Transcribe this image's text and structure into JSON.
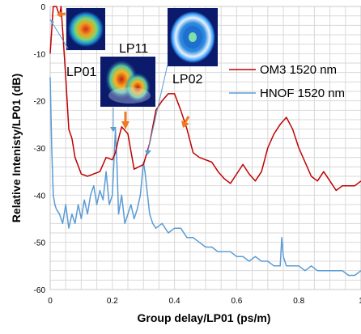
{
  "chart_data": {
    "type": "line",
    "xlabel": "Group delay/LP01 (ps/m)",
    "ylabel": "Relative Intenisty/LP01 (dB)",
    "xlim": [
      0,
      1
    ],
    "ylim": [
      -60,
      0
    ],
    "x_ticks": [
      0,
      0.2,
      0.4,
      0.6,
      0.8,
      1
    ],
    "y_ticks": [
      0,
      -10,
      -20,
      -30,
      -40,
      -50,
      -60
    ],
    "x_tick_labels": [
      "0",
      "0.2",
      "0.4",
      "0.6",
      "0.8",
      "1"
    ],
    "y_tick_labels": [
      "0",
      "-10",
      "-20",
      "-30",
      "-40",
      "-50",
      "-60"
    ],
    "grid": true,
    "legend_position": "right",
    "series": [
      {
        "name": "OM3 1520 nm",
        "color": "#c00000",
        "x": [
          0.0,
          0.01,
          0.02,
          0.03,
          0.035,
          0.04,
          0.05,
          0.06,
          0.07,
          0.08,
          0.1,
          0.12,
          0.14,
          0.16,
          0.18,
          0.2,
          0.21,
          0.22,
          0.23,
          0.25,
          0.27,
          0.3,
          0.32,
          0.34,
          0.36,
          0.38,
          0.4,
          0.42,
          0.44,
          0.46,
          0.48,
          0.5,
          0.52,
          0.54,
          0.56,
          0.58,
          0.6,
          0.62,
          0.64,
          0.66,
          0.68,
          0.7,
          0.72,
          0.74,
          0.76,
          0.78,
          0.8,
          0.82,
          0.84,
          0.86,
          0.88,
          0.9,
          0.92,
          0.94,
          0.96,
          0.98,
          1.0
        ],
        "y": [
          -10,
          0,
          0,
          -2,
          0,
          -5,
          -15,
          -26,
          -28,
          -32,
          -35.5,
          -36,
          -35.5,
          -35,
          -32,
          -32.5,
          -31,
          -28,
          -25.5,
          -27,
          -34.5,
          -33.5,
          -29,
          -22,
          -20,
          -18.5,
          -18.5,
          -22,
          -26,
          -31,
          -32,
          -32.5,
          -33,
          -35,
          -36.5,
          -37.5,
          -35.5,
          -33.5,
          -35.5,
          -37,
          -35,
          -30,
          -27,
          -25,
          -23.5,
          -26,
          -30,
          -33,
          -36,
          -37,
          -35,
          -37,
          -39,
          -38,
          -38,
          -38,
          -37
        ]
      },
      {
        "name": "HNOF 1520 nm",
        "color": "#5b9bd5",
        "x": [
          0.0,
          0.005,
          0.01,
          0.015,
          0.02,
          0.03,
          0.04,
          0.05,
          0.06,
          0.07,
          0.08,
          0.09,
          0.1,
          0.11,
          0.12,
          0.13,
          0.14,
          0.15,
          0.16,
          0.17,
          0.18,
          0.19,
          0.2,
          0.205,
          0.21,
          0.215,
          0.22,
          0.23,
          0.24,
          0.25,
          0.26,
          0.27,
          0.28,
          0.29,
          0.3,
          0.305,
          0.31,
          0.32,
          0.33,
          0.34,
          0.36,
          0.38,
          0.4,
          0.42,
          0.44,
          0.46,
          0.48,
          0.5,
          0.52,
          0.54,
          0.56,
          0.58,
          0.6,
          0.62,
          0.64,
          0.66,
          0.68,
          0.7,
          0.72,
          0.74,
          0.745,
          0.75,
          0.755,
          0.76,
          0.78,
          0.8,
          0.82,
          0.84,
          0.86,
          0.88,
          0.9,
          0.92,
          0.94,
          0.96,
          0.98,
          1.0
        ],
        "y": [
          -15,
          -30,
          -40,
          -42,
          -43,
          -44,
          -46,
          -42,
          -47,
          -44,
          -46,
          -42,
          -45,
          -41,
          -44,
          -40,
          -38,
          -42,
          -39,
          -41,
          -35,
          -42,
          -40,
          -33,
          -26,
          -34,
          -44,
          -40,
          -46,
          -44,
          -42,
          -45,
          -43,
          -40,
          -33,
          -35,
          -38,
          -44,
          -46,
          -47,
          -46,
          -48,
          -47,
          -47,
          -49,
          -49,
          -50,
          -51,
          -51,
          -52,
          -52,
          -52,
          -53,
          -53,
          -54,
          -53,
          -54,
          -54,
          -55,
          -55,
          -49,
          -53,
          -54,
          -55,
          -55,
          -55,
          -56,
          -55,
          -56,
          -56,
          -56,
          -56,
          -56,
          -57,
          -57,
          -56
        ]
      }
    ],
    "annotations": [
      {
        "text": "LP01",
        "color": "#000000"
      },
      {
        "text": "LP11",
        "color": "#000000"
      },
      {
        "text": "LP02",
        "color": "#000000"
      }
    ]
  }
}
